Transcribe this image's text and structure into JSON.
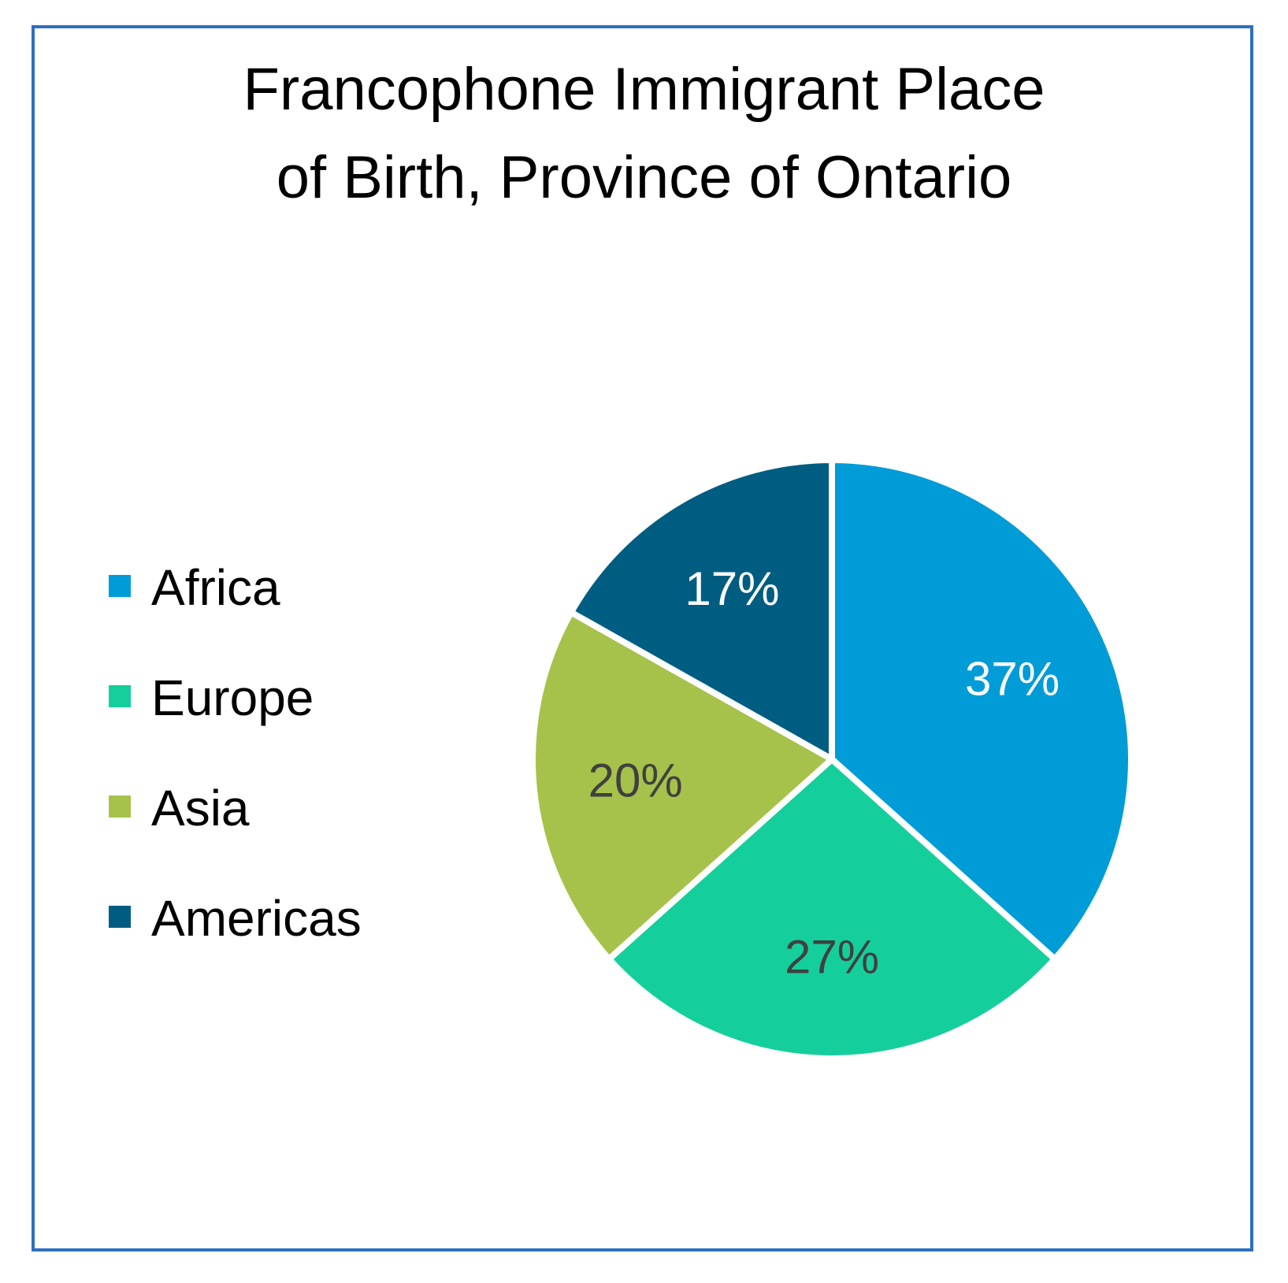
{
  "chart_data": {
    "type": "pie",
    "title": "Francophone Immigrant Place of Birth, Province of Ontario",
    "title_lines": [
      "Francophone Immigrant Place",
      "of Birth, Province of Ontario"
    ],
    "categories": [
      "Africa",
      "Europe",
      "Asia",
      "Americas"
    ],
    "values": [
      37,
      27,
      20,
      17
    ],
    "labels": [
      "37%",
      "27%",
      "20%",
      "17%"
    ],
    "colors": [
      "#009cd8",
      "#14cf9b",
      "#a6c24a",
      "#005d82"
    ],
    "label_colors": [
      "#ffffff",
      "#404040",
      "#404040",
      "#ffffff"
    ],
    "legend_position": "left",
    "start_angle": "12 o'clock, clockwise"
  }
}
